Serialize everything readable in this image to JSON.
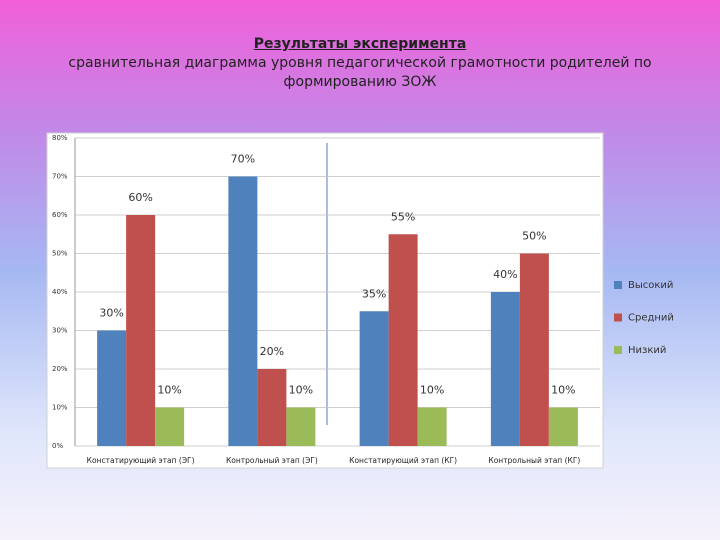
{
  "chart_data": {
    "type": "bar",
    "title": "Результаты эксперимента",
    "subtitle": "сравнительная диаграмма уровня педагогической грамотности родителей по формированию ЗОЖ",
    "categories": [
      "Констатирующий этап (ЭГ)",
      "Контрольный этап (ЭГ)",
      "Констатирующий этап (КГ)",
      "Контрольный этап (КГ)"
    ],
    "series": [
      {
        "name": "Высокий",
        "color": "#4f81bd",
        "values": [
          30,
          70,
          35,
          40
        ],
        "value_labels": [
          "30%",
          "70%",
          "35%",
          "40%"
        ]
      },
      {
        "name": "Средний",
        "color": "#c0504d",
        "values": [
          60,
          20,
          55,
          50
        ],
        "value_labels": [
          "60%",
          "20%",
          "55%",
          "50%"
        ]
      },
      {
        "name": "Низкий",
        "color": "#9bbb59",
        "values": [
          10,
          10,
          10,
          10
        ],
        "value_labels": [
          "10%",
          "10%",
          "10%",
          "10%"
        ]
      }
    ],
    "ylim": [
      0,
      80
    ],
    "yticks": [
      {
        "value": 0,
        "label": "0%"
      },
      {
        "value": 10,
        "label": "10%"
      },
      {
        "value": 20,
        "label": "20%"
      },
      {
        "value": 30,
        "label": "30%"
      },
      {
        "value": 40,
        "label": "40%"
      },
      {
        "value": 50,
        "label": "50%"
      },
      {
        "value": 60,
        "label": "60%"
      },
      {
        "value": 70,
        "label": "70%"
      },
      {
        "value": 80,
        "label": "80%"
      }
    ],
    "grid": true,
    "legend": "right"
  }
}
